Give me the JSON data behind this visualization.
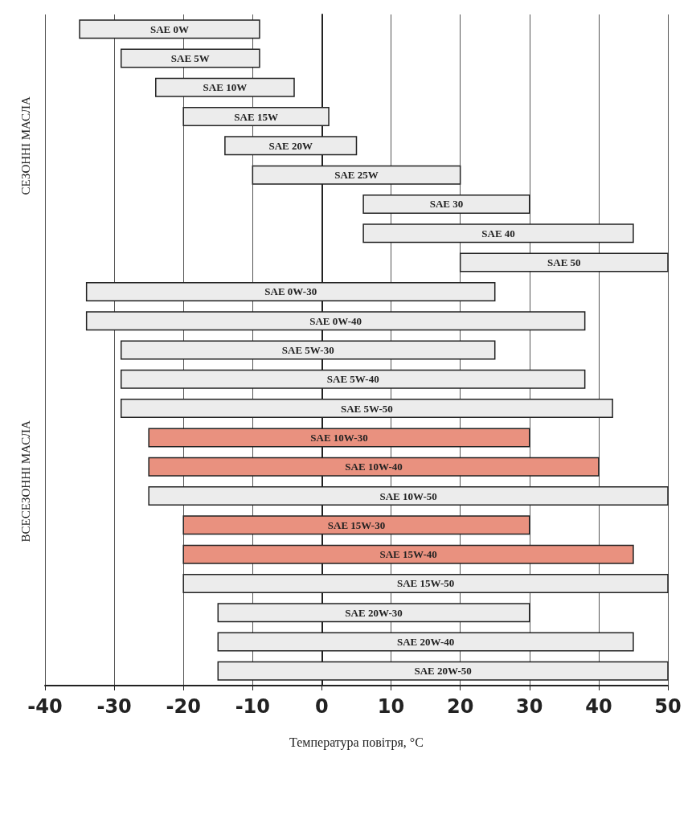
{
  "chart_data": {
    "type": "bar",
    "orientation": "horizontal",
    "xlabel": "Температура повітря, °C",
    "annotations": [
      "СЕЗОННІ МАСЛА",
      "ВСЕСЕЗОННІ МАСЛА"
    ],
    "categories": [
      "SAE 0W",
      "SAE 5W",
      "SAE 10W",
      "SAE 15W",
      "SAE 20W",
      "SAE 25W",
      "SAE 30",
      "SAE 40",
      "SAE 50",
      "SAE 0W-30",
      "SAE 0W-40",
      "SAE 5W-30",
      "SAE 5W-40",
      "SAE 5W-50",
      "SAE 10W-30",
      "SAE 10W-40",
      "SAE 10W-50",
      "SAE 15W-30",
      "SAE 15W-40",
      "SAE 15W-50",
      "SAE 20W-30",
      "SAE 20W-40",
      "SAE 20W-50"
    ],
    "base": [
      -35,
      -29,
      -24,
      -20,
      -14,
      -10,
      6,
      6,
      20,
      -34,
      -34,
      -29,
      -29,
      -29,
      -25,
      -25,
      -25,
      -20,
      -20,
      -20,
      -15,
      -15,
      -15
    ],
    "values": [
      26,
      20,
      20,
      21,
      19,
      30,
      24,
      39,
      30,
      59,
      72,
      54,
      67,
      71,
      55,
      65,
      75,
      50,
      65,
      70,
      45,
      60,
      65
    ],
    "colors": [
      "#ececec",
      "#ececec",
      "#ececec",
      "#ececec",
      "#ececec",
      "#ececec",
      "#ececec",
      "#ececec",
      "#ececec",
      "#ececec",
      "#ececec",
      "#ececec",
      "#ececec",
      "#ececec",
      "#e9917f",
      "#e9917f",
      "#ececec",
      "#e9917f",
      "#e9917f",
      "#ececec",
      "#ececec",
      "#ececec",
      "#ececec"
    ],
    "xlim": [
      -40,
      50
    ],
    "xticks": [
      -40,
      -30,
      -20,
      -10,
      0,
      10,
      20,
      30,
      40,
      50
    ],
    "grid": "x"
  }
}
